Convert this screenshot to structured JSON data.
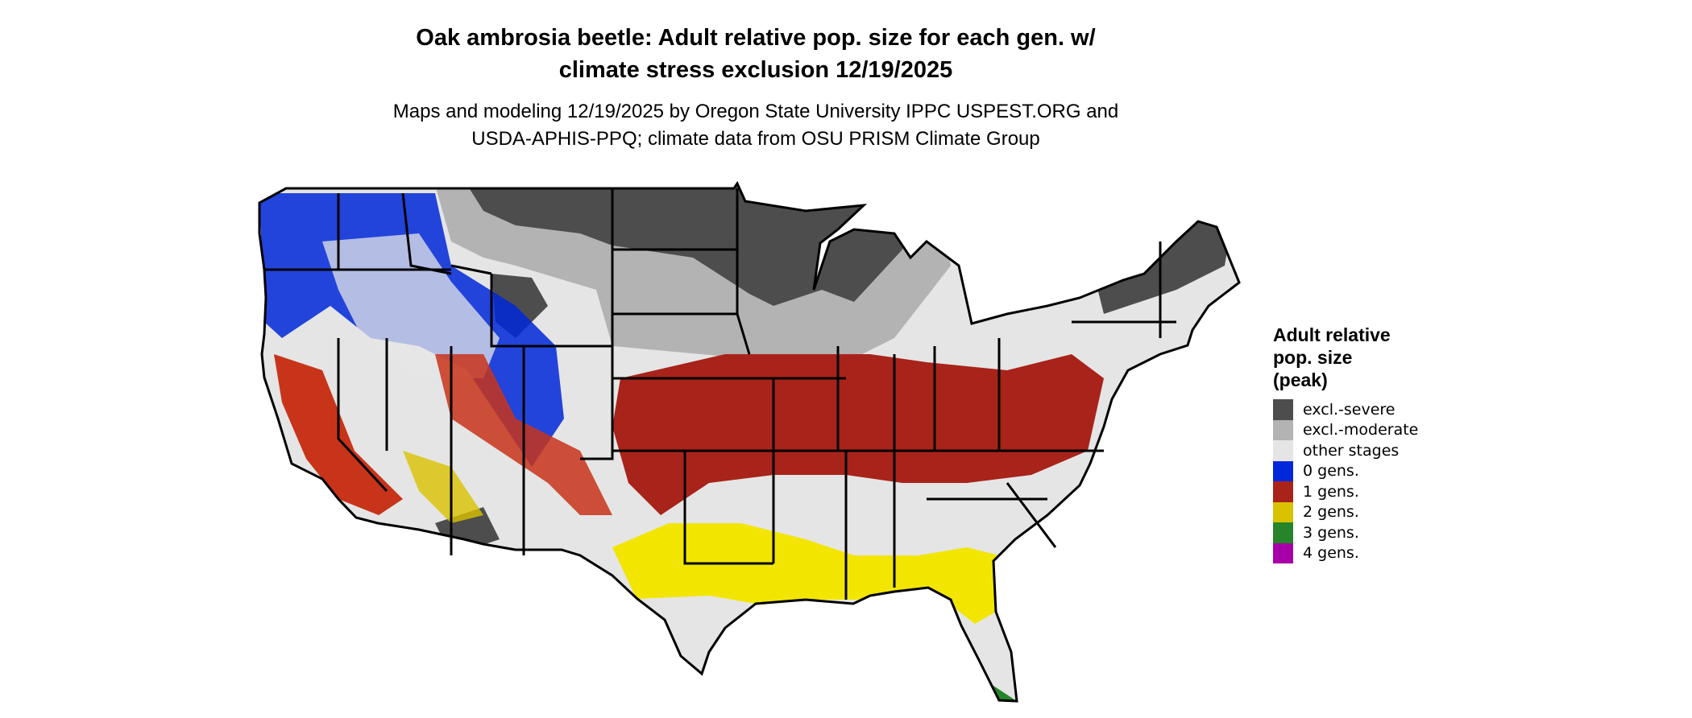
{
  "title": {
    "line1": "Oak ambrosia beetle: Adult relative pop. size for each gen. w/",
    "line2": "climate stress exclusion 12/19/2025"
  },
  "subtitle": {
    "line1": "Maps and modeling 12/19/2025 by Oregon State University IPPC USPEST.ORG and",
    "line2": "USDA-APHIS-PPQ; climate data from OSU PRISM Climate Group"
  },
  "legend": {
    "title_lines": [
      "Adult relative",
      "pop. size",
      "(peak)"
    ],
    "items": [
      {
        "label": "excl.-severe",
        "color": "#4d4d4d"
      },
      {
        "label": "excl.-moderate",
        "color": "#b3b3b3"
      },
      {
        "label": "other stages",
        "color": "#e5e5e5"
      },
      {
        "label": "0 gens.",
        "color": "#0028d9"
      },
      {
        "label": "1 gens.",
        "color": "#a8231a"
      },
      {
        "label": "2 gens.",
        "color": "#d9c200"
      },
      {
        "label": "3 gens.",
        "color": "#26852a"
      },
      {
        "label": "4 gens.",
        "color": "#a800a8"
      }
    ]
  }
}
